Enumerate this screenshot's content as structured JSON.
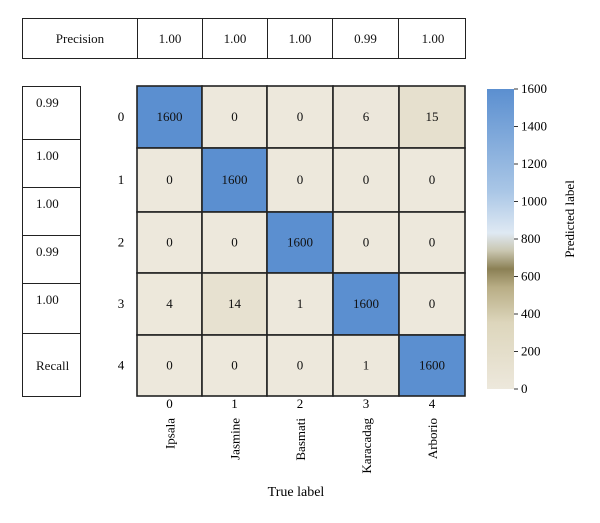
{
  "precision_row": {
    "label": "Precision",
    "values": [
      "1.00",
      "1.00",
      "1.00",
      "0.99",
      "1.00"
    ]
  },
  "recall_col": {
    "values": [
      "0.99",
      "1.00",
      "1.00",
      "0.99",
      "1.00"
    ],
    "label": "Recall"
  },
  "chart_data": {
    "type": "heatmap",
    "row_labels": [
      "0",
      "1",
      "2",
      "3",
      "4"
    ],
    "col_index_labels": [
      "0",
      "1",
      "2",
      "3",
      "4"
    ],
    "col_names": [
      "Ipsala",
      "Jasmine",
      "Basmati",
      "Karacadag",
      "Arborio"
    ],
    "values": [
      [
        1600,
        0,
        0,
        6,
        15
      ],
      [
        0,
        1600,
        0,
        0,
        0
      ],
      [
        0,
        0,
        1600,
        0,
        0
      ],
      [
        4,
        14,
        1,
        1600,
        0
      ],
      [
        0,
        0,
        0,
        1,
        1600
      ]
    ],
    "xlabel": "True label",
    "colorbar_label": "Predicted label",
    "colorbar_range": [
      0,
      1600
    ],
    "colorbar_ticks": [
      "0",
      "200",
      "400",
      "600",
      "800",
      "1000",
      "1200",
      "1400",
      "1600"
    ],
    "colors": {
      "low": "#ede8dc",
      "mid_low": "#cfc6a4",
      "mid": "#8b8055",
      "mid_high": "#c8d8ea",
      "high": "#5b8fd0"
    }
  }
}
